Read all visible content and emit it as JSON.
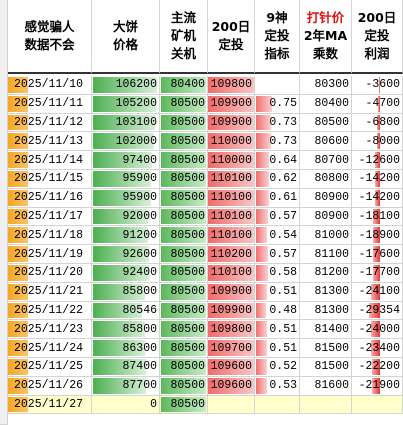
{
  "table": {
    "headers": [
      [
        "感觉骗人",
        "数据不会"
      ],
      [
        "大饼",
        "价格"
      ],
      [
        "主流",
        "矿机",
        "关机"
      ],
      [
        "200日",
        "定投"
      ],
      [
        "9神",
        "定投",
        "指标"
      ],
      [
        "打针价",
        "2年MA",
        "乘数"
      ],
      [
        "200日",
        "定投",
        "利润"
      ]
    ],
    "rows": [
      [
        "2025/11/10",
        106200,
        80400,
        109800,
        null,
        80300,
        -3600
      ],
      [
        "2025/11/11",
        105200,
        80500,
        109900,
        0.75,
        80400,
        -4700
      ],
      [
        "2025/11/12",
        103100,
        80500,
        109900,
        0.73,
        80500,
        -6800
      ],
      [
        "2025/11/13",
        102000,
        80500,
        110000,
        0.73,
        80600,
        -8000
      ],
      [
        "2025/11/14",
        97400,
        80500,
        110000,
        0.64,
        80700,
        -12600
      ],
      [
        "2025/11/15",
        95900,
        80500,
        110100,
        0.62,
        80800,
        -14200
      ],
      [
        "2025/11/16",
        95900,
        80500,
        110100,
        0.61,
        80900,
        -14200
      ],
      [
        "2025/11/17",
        92000,
        80500,
        110100,
        0.57,
        80900,
        -18100
      ],
      [
        "2025/11/18",
        91200,
        80500,
        110100,
        0.54,
        81000,
        -18900
      ],
      [
        "2025/11/19",
        92600,
        80500,
        110200,
        0.57,
        81100,
        -17600
      ],
      [
        "2025/11/20",
        92400,
        80500,
        110100,
        0.58,
        81200,
        -17700
      ],
      [
        "2025/11/21",
        85800,
        80500,
        109900,
        0.51,
        81300,
        -24100
      ],
      [
        "2025/11/22",
        80546,
        80500,
        109900,
        0.48,
        81300,
        -29354
      ],
      [
        "2025/11/23",
        85800,
        80500,
        109800,
        0.51,
        81400,
        -24000
      ],
      [
        "2025/11/24",
        86300,
        80500,
        109700,
        0.51,
        81500,
        -23400
      ],
      [
        "2025/11/25",
        87400,
        80500,
        109600,
        0.52,
        81500,
        -22200
      ],
      [
        "2025/11/26",
        87700,
        80500,
        109600,
        0.53,
        81600,
        -21900
      ],
      [
        "2025/11/27",
        0,
        80500,
        null,
        null,
        null,
        null
      ]
    ]
  }
}
